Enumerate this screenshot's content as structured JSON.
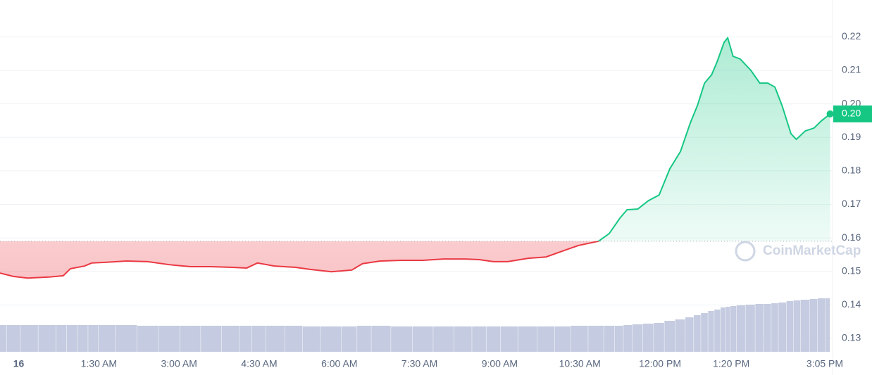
{
  "chart_data": {
    "type": "line",
    "x": [
      -21,
      -6,
      10,
      34,
      50,
      58,
      74,
      82,
      97,
      121,
      145,
      169,
      193,
      216,
      240,
      256,
      268,
      287,
      311,
      327,
      351,
      374,
      386,
      406,
      430,
      454,
      477,
      501,
      517,
      533,
      549,
      572,
      592,
      612,
      628,
      651,
      663,
      675,
      683,
      695,
      707,
      719,
      731,
      743,
      754,
      762,
      770,
      778,
      784,
      792,
      796,
      802,
      810,
      822,
      832,
      841,
      849,
      857,
      867,
      873,
      883,
      893,
      901,
      911
    ],
    "series": [
      {
        "values": [
          0.1495,
          0.1485,
          0.148,
          0.1483,
          0.1487,
          0.1508,
          0.1516,
          0.1525,
          0.1527,
          0.1531,
          0.1529,
          0.152,
          0.1514,
          0.1514,
          0.1512,
          0.151,
          0.1525,
          0.1516,
          0.1512,
          0.1506,
          0.1499,
          0.1504,
          0.1523,
          0.1531,
          0.1533,
          0.1533,
          0.1537,
          0.1537,
          0.1535,
          0.1529,
          0.1529,
          0.1539,
          0.1543,
          0.1562,
          0.1577,
          0.159,
          0.1613,
          0.1659,
          0.1684,
          0.1686,
          0.1711,
          0.1728,
          0.1806,
          0.1858,
          0.1943,
          0.1995,
          0.2062,
          0.2087,
          0.2125,
          0.2184,
          0.2197,
          0.2142,
          0.2134,
          0.21,
          0.2062,
          0.2062,
          0.205,
          0.1995,
          0.1911,
          0.1894,
          0.1919,
          0.1928,
          0.1949,
          0.197
        ],
        "up_color": "#16c784",
        "down_color": "#ea3943"
      }
    ],
    "volume": {
      "values": [
        38,
        38,
        38,
        38,
        38,
        38,
        38,
        38,
        38,
        38,
        37,
        37,
        37,
        37,
        37,
        37,
        37,
        37,
        37,
        36,
        36,
        36,
        37,
        37,
        36,
        36,
        36,
        36,
        36,
        36,
        36,
        36,
        36,
        36,
        37,
        37,
        37,
        37,
        38,
        39,
        40,
        41,
        44,
        46,
        49,
        52,
        55,
        58,
        60,
        63,
        64,
        65,
        66,
        67,
        68,
        68,
        69,
        70,
        72,
        73,
        74,
        75,
        76,
        76
      ],
      "color": "#c5cbe0",
      "vlim": [
        0,
        100
      ]
    },
    "baseline": 0.159,
    "price_label": "0.20",
    "watermark": "CoinMarketCap",
    "xlim": [
      -21,
      958
    ],
    "xticks": [
      {
        "value": 0,
        "label": "16"
      },
      {
        "value": 90,
        "label": "1:30 AM"
      },
      {
        "value": 180,
        "label": "3:00 AM"
      },
      {
        "value": 270,
        "label": "4:30 AM"
      },
      {
        "value": 360,
        "label": "6:00 AM"
      },
      {
        "value": 450,
        "label": "7:30 AM"
      },
      {
        "value": 540,
        "label": "9:00 AM"
      },
      {
        "value": 630,
        "label": "10:30 AM"
      },
      {
        "value": 720,
        "label": "12:00 PM"
      },
      {
        "value": 800,
        "label": "1:20 PM"
      },
      {
        "value": 905,
        "label": "3:05 PM"
      }
    ],
    "ylim": [
      0.126,
      0.231
    ],
    "yticks": [
      0.13,
      0.14,
      0.15,
      0.16,
      0.17,
      0.18,
      0.19,
      {
        "value": 0.2,
        "label": "0.20"
      },
      0.21,
      0.22
    ],
    "grid": true
  }
}
